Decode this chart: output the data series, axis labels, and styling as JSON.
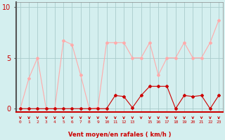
{
  "x": [
    0,
    1,
    2,
    3,
    4,
    5,
    6,
    7,
    8,
    9,
    10,
    11,
    12,
    13,
    14,
    15,
    16,
    17,
    18,
    19,
    20,
    21,
    22,
    23
  ],
  "wind_avg": [
    0,
    0,
    0,
    0,
    0,
    0,
    0,
    0,
    0,
    0,
    0,
    1.3,
    1.2,
    0.1,
    1.3,
    2.2,
    2.2,
    2.2,
    0,
    1.3,
    1.2,
    1.3,
    0,
    1.3
  ],
  "wind_gust": [
    0,
    3,
    5,
    0,
    0,
    6.7,
    6.3,
    3.3,
    0,
    0.1,
    6.5,
    6.5,
    6.5,
    5,
    5,
    6.5,
    3.3,
    5,
    5,
    6.5,
    5,
    5,
    6.5,
    8.7
  ],
  "color_avg": "#cc0000",
  "color_gust": "#ffaaaa",
  "bg_color": "#d4efef",
  "grid_color": "#aacccc",
  "xlabel": "Vent moyen/en rafales ( km/h )",
  "yticks": [
    0,
    5,
    10
  ],
  "ylim": [
    -0.3,
    10.5
  ],
  "xlim": [
    -0.5,
    23.5
  ],
  "arrow_color": "#cc0000",
  "tick_label_color": "#cc0000",
  "tick_labels": [
    "0",
    "1",
    "2",
    "3",
    "4",
    "5",
    "6",
    "7",
    "8",
    "9",
    "10",
    "11",
    "12",
    "13",
    "",
    "15",
    "16",
    "17",
    "18",
    "19",
    "20",
    "21",
    "22",
    "23"
  ]
}
